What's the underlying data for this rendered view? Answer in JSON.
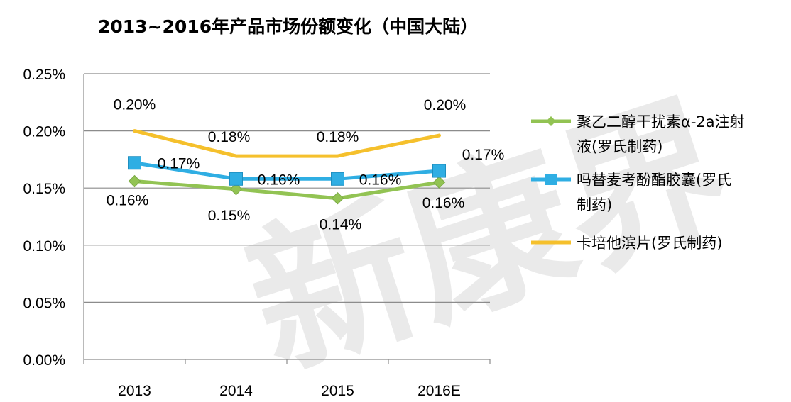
{
  "chart_data": {
    "type": "line",
    "title": "2013~2016年产品市场份额变化（中国大陆）",
    "categories": [
      "2013",
      "2014",
      "2015",
      "2016E"
    ],
    "ylim": [
      0,
      0.25
    ],
    "yticks": [
      "0.00%",
      "0.05%",
      "0.10%",
      "0.15%",
      "0.20%",
      "0.25%"
    ],
    "grid": true,
    "legend": "right",
    "series": [
      {
        "name": "聚乙二醇干扰素α-2a注射液(罗氏制药)",
        "name_lines": [
          "聚乙二醇干扰素α-2a注射",
          "液(罗氏制药)"
        ],
        "color": "#92c353",
        "marker": "diamond",
        "values": [
          0.156,
          0.149,
          0.141,
          0.155
        ],
        "labels": [
          "0.16%",
          "0.15%",
          "0.14%",
          "0.16%"
        ]
      },
      {
        "name": "吗替麦考酚酯胶囊(罗氏制药)",
        "name_lines": [
          "吗替麦考酚酯胶囊(罗氏",
          "制药)"
        ],
        "color": "#2faee3",
        "marker": "square",
        "values": [
          0.172,
          0.158,
          0.158,
          0.165
        ],
        "labels": [
          "0.17%",
          "0.16%",
          "0.16%",
          "0.17%"
        ]
      },
      {
        "name": "卡培他滨片(罗氏制药)",
        "name_lines": [
          "卡培他滨片(罗氏制药)"
        ],
        "color": "#f5c02c",
        "marker": "none",
        "values": [
          0.2,
          0.178,
          0.178,
          0.196
        ],
        "labels": [
          "0.20%",
          "0.18%",
          "0.18%",
          "0.20%"
        ]
      }
    ]
  }
}
